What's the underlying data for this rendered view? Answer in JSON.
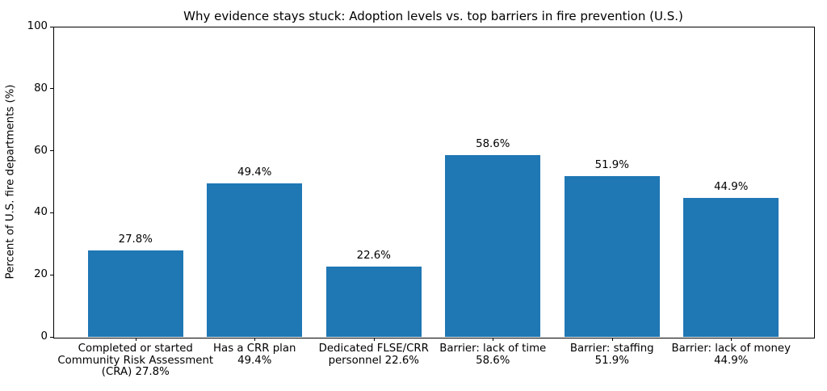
{
  "chart_data": {
    "type": "bar",
    "title": "Why evidence stays stuck: Adoption levels vs. top barriers in fire prevention (U.S.)",
    "xlabel": "",
    "ylabel": "Percent of U.S. fire departments (%)",
    "ylim": [
      0,
      100
    ],
    "yticks": [
      "0",
      "20",
      "40",
      "60",
      "80",
      "100"
    ],
    "grid": false,
    "legend_position": "none",
    "bar_color": "#1f77b4",
    "categories": [
      "Completed or started\nCommunity Risk Assessment\n(CRA) 27.8%",
      "Has a CRR plan\n49.4%",
      "Dedicated FLSE/CRR\npersonnel 22.6%",
      "Barrier: lack of time\n58.6%",
      "Barrier: staffing\n51.9%",
      "Barrier: lack of money\n44.9%"
    ],
    "values": [
      27.8,
      49.4,
      22.6,
      58.6,
      51.9,
      44.9
    ],
    "value_labels": [
      "27.8%",
      "49.4%",
      "22.6%",
      "58.6%",
      "51.9%",
      "44.9%"
    ]
  }
}
